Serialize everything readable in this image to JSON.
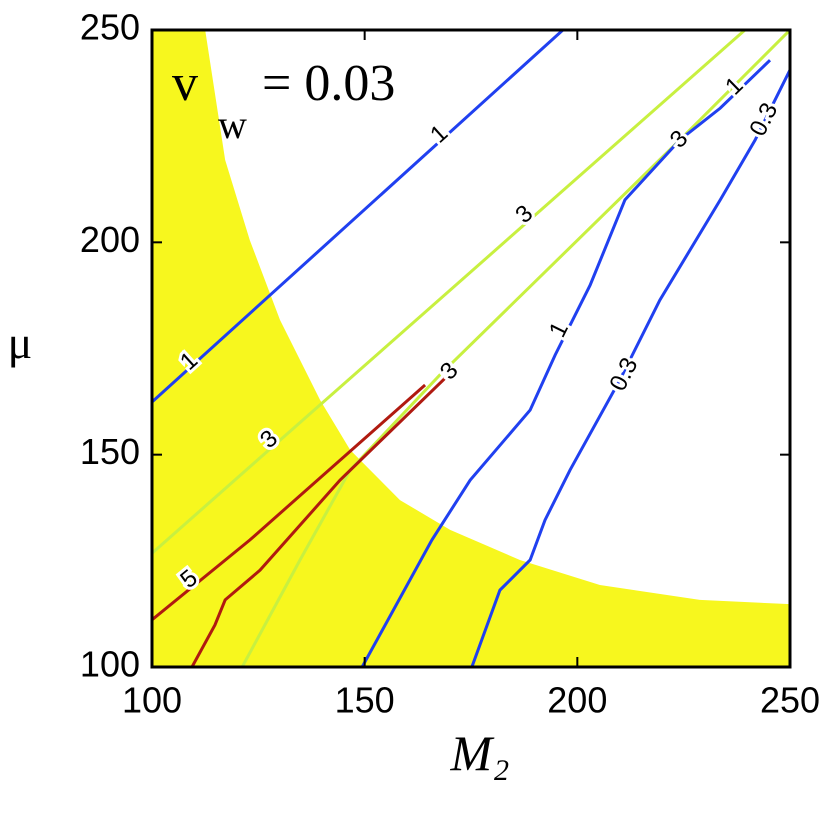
{
  "chart_data": {
    "type": "contour",
    "xlabel": "M₂",
    "ylabel": "μ",
    "annotation": {
      "base": "v",
      "sub": "w",
      "text": "= 0.03"
    },
    "xlim": [
      100,
      250
    ],
    "xticks": [
      100,
      150,
      200,
      250
    ],
    "ylim": [
      100,
      250
    ],
    "yticks": [
      100,
      150,
      200,
      250
    ],
    "region": {
      "color": "#f7f71e",
      "x": [
        100,
        112.5,
        117.2,
        123,
        130.1,
        139.5,
        146.6,
        158.3,
        170.1,
        186.5,
        205.3,
        228.8,
        250,
        250,
        100
      ],
      "y": [
        250,
        250,
        219.4,
        200.5,
        181.7,
        162.9,
        151.1,
        139.3,
        132.3,
        125.2,
        119.3,
        115.8,
        114.8,
        100,
        100
      ]
    },
    "series": [
      {
        "level": 1,
        "color": "#2040f0",
        "x": [
          100,
          196.6
        ],
        "y": [
          162.4,
          250
        ],
        "labels": [
          {
            "x": 167.7,
            "y": 225.3
          },
          {
            "x": 108.9,
            "y": 171.8
          }
        ]
      },
      {
        "level": 3,
        "color": "#c8f040",
        "x": [
          100,
          239.4
        ],
        "y": [
          126.8,
          250
        ],
        "labels": [
          {
            "x": 127.7,
            "y": 153.4
          },
          {
            "x": 187.7,
            "y": 206.4
          }
        ]
      },
      {
        "level": 3,
        "color": "#c8f040",
        "x": [
          121.2,
          134.8,
          146.6,
          167.7,
          224.1,
          250
        ],
        "y": [
          100,
          125.2,
          146.4,
          168.8,
          224.1,
          250
        ],
        "labels": [
          {
            "x": 170.1,
            "y": 169.5
          },
          {
            "x": 224.1,
            "y": 224.1
          }
        ]
      },
      {
        "level": 5,
        "color": "#b01a10",
        "x": [
          100,
          123,
          164.2,
          null,
          109.4,
          114.8,
          117.2,
          125.4,
          144.2,
          168.9
        ],
        "y": [
          111.1,
          129.9,
          166.4,
          null,
          100,
          109.9,
          115.8,
          122.8,
          144,
          168
        ],
        "labels": [
          {
            "x": 108.9,
            "y": 120.5
          }
        ]
      },
      {
        "level": 1,
        "color": "#2040f0",
        "x": [
          149.4,
          165.8,
          174.8,
          188.9,
          194.8,
          203,
          211.2,
          224.1,
          233.6,
          245.3
        ],
        "y": [
          100,
          129.9,
          144,
          160.5,
          173.5,
          189.9,
          210,
          224.1,
          231.6,
          242.9
        ],
        "labels": [
          {
            "x": 195.9,
            "y": 179.3
          },
          {
            "x": 237.1,
            "y": 236.6
          }
        ]
      },
      {
        "level": 0.3,
        "color": "#2040f0",
        "x": [
          175.2,
          181.8,
          188.9,
          192.4,
          198.3,
          210,
          219.4,
          233.6,
          241.8,
          250
        ],
        "y": [
          100,
          118.1,
          125.2,
          134.6,
          146.4,
          167.6,
          186.4,
          210,
          224.1,
          240.6
        ],
        "labels": [
          {
            "x": 211.2,
            "y": 168.8
          },
          {
            "x": 244.1,
            "y": 228.8
          }
        ]
      }
    ]
  }
}
